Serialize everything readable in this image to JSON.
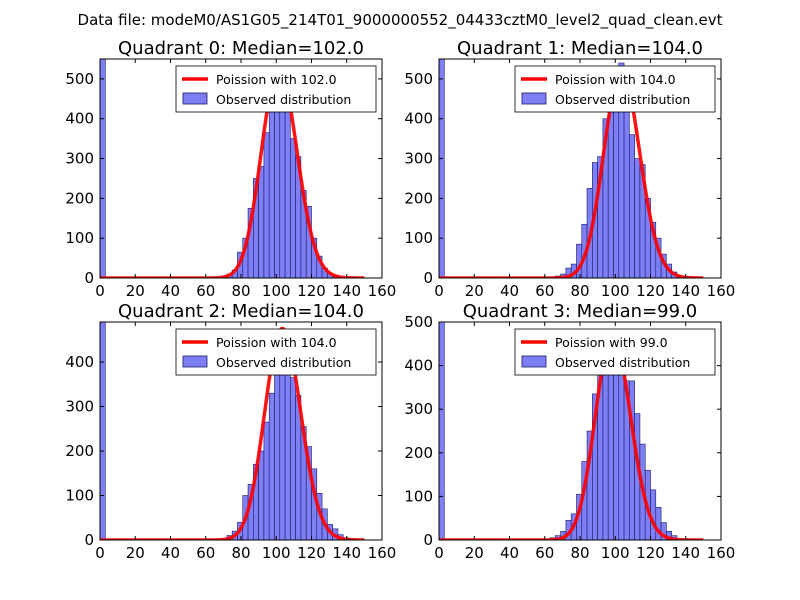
{
  "suptitle": "Data file: modeM0/AS1G05_214T01_9000000552_04433cztM0_level2_quad_clean.evt",
  "legend_labels": {
    "fit": "Poission with",
    "observed": "Observed distribution"
  },
  "colors": {
    "fit": "#ff0000",
    "bars": "#7f7ff5",
    "bar_edge": "#1a1a66"
  },
  "chart_data": [
    {
      "type": "bar",
      "title": "Quadrant 0: Median=102.0",
      "legend": [
        "Poission with 102.0",
        "Observed distribution"
      ],
      "legend_position": "top-right",
      "median": 102.0,
      "xlim": [
        0,
        160
      ],
      "ylim": [
        0,
        550
      ],
      "xticks": [
        0,
        20,
        40,
        60,
        80,
        100,
        120,
        140,
        160
      ],
      "yticks": [
        0,
        100,
        200,
        300,
        400,
        500
      ],
      "bin_width": 3,
      "bins": [
        [
          0,
          550
        ],
        [
          69,
          5
        ],
        [
          72,
          10
        ],
        [
          75,
          20
        ],
        [
          78,
          65
        ],
        [
          81,
          100
        ],
        [
          84,
          175
        ],
        [
          87,
          250
        ],
        [
          90,
          280
        ],
        [
          93,
          365
        ],
        [
          96,
          460
        ],
        [
          99,
          500
        ],
        [
          102,
          440
        ],
        [
          105,
          430
        ],
        [
          108,
          350
        ],
        [
          111,
          305
        ],
        [
          114,
          220
        ],
        [
          117,
          180
        ],
        [
          120,
          100
        ],
        [
          123,
          55
        ],
        [
          126,
          25
        ],
        [
          129,
          12
        ],
        [
          132,
          5
        ],
        [
          135,
          2
        ]
      ],
      "fit_peak": 525
    },
    {
      "type": "bar",
      "title": "Quadrant 1: Median=104.0",
      "legend": [
        "Poission with 104.0",
        "Observed distribution"
      ],
      "legend_position": "top-right",
      "median": 104.0,
      "xlim": [
        0,
        160
      ],
      "ylim": [
        0,
        550
      ],
      "xticks": [
        0,
        20,
        40,
        60,
        80,
        100,
        120,
        140,
        160
      ],
      "yticks": [
        0,
        100,
        200,
        300,
        400,
        500
      ],
      "bin_width": 3,
      "bins": [
        [
          0,
          550
        ],
        [
          66,
          5
        ],
        [
          69,
          10
        ],
        [
          72,
          25
        ],
        [
          75,
          35
        ],
        [
          78,
          85
        ],
        [
          81,
          135
        ],
        [
          84,
          225
        ],
        [
          87,
          290
        ],
        [
          90,
          305
        ],
        [
          93,
          400
        ],
        [
          96,
          430
        ],
        [
          99,
          460
        ],
        [
          102,
          540
        ],
        [
          105,
          470
        ],
        [
          108,
          360
        ],
        [
          111,
          300
        ],
        [
          114,
          285
        ],
        [
          117,
          200
        ],
        [
          120,
          140
        ],
        [
          123,
          100
        ],
        [
          126,
          60
        ],
        [
          129,
          35
        ],
        [
          132,
          15
        ],
        [
          135,
          5
        ]
      ],
      "fit_peak": 520
    },
    {
      "type": "bar",
      "title": "Quadrant 2: Median=104.0",
      "legend": [
        "Poission with 104.0",
        "Observed distribution"
      ],
      "legend_position": "top-right",
      "median": 104.0,
      "xlim": [
        0,
        160
      ],
      "ylim": [
        0,
        490
      ],
      "xticks": [
        0,
        20,
        40,
        60,
        80,
        100,
        120,
        140,
        160
      ],
      "yticks": [
        0,
        100,
        200,
        300,
        400
      ],
      "bin_width": 3,
      "bins": [
        [
          0,
          490
        ],
        [
          72,
          10
        ],
        [
          75,
          20
        ],
        [
          78,
          40
        ],
        [
          81,
          100
        ],
        [
          84,
          125
        ],
        [
          87,
          170
        ],
        [
          90,
          200
        ],
        [
          93,
          265
        ],
        [
          96,
          330
        ],
        [
          99,
          380
        ],
        [
          102,
          440
        ],
        [
          105,
          410
        ],
        [
          108,
          365
        ],
        [
          111,
          325
        ],
        [
          114,
          255
        ],
        [
          117,
          210
        ],
        [
          120,
          160
        ],
        [
          123,
          105
        ],
        [
          126,
          70
        ],
        [
          129,
          35
        ],
        [
          132,
          25
        ],
        [
          135,
          12
        ],
        [
          138,
          5
        ],
        [
          141,
          2
        ]
      ],
      "fit_peak": 475
    },
    {
      "type": "bar",
      "title": "Quadrant 3: Median=99.0",
      "legend": [
        "Poission with 99.0",
        "Observed distribution"
      ],
      "legend_position": "top-right",
      "median": 99.0,
      "xlim": [
        0,
        160
      ],
      "ylim": [
        0,
        500
      ],
      "xticks": [
        0,
        20,
        40,
        60,
        80,
        100,
        120,
        140,
        160
      ],
      "yticks": [
        0,
        100,
        200,
        300,
        400,
        500
      ],
      "bin_width": 3,
      "bins": [
        [
          0,
          500
        ],
        [
          63,
          5
        ],
        [
          66,
          10
        ],
        [
          69,
          20
        ],
        [
          72,
          45
        ],
        [
          75,
          60
        ],
        [
          78,
          105
        ],
        [
          81,
          180
        ],
        [
          84,
          250
        ],
        [
          87,
          335
        ],
        [
          90,
          390
        ],
        [
          93,
          450
        ],
        [
          96,
          430
        ],
        [
          99,
          470
        ],
        [
          102,
          430
        ],
        [
          105,
          365
        ],
        [
          108,
          365
        ],
        [
          111,
          290
        ],
        [
          114,
          220
        ],
        [
          117,
          160
        ],
        [
          120,
          115
        ],
        [
          123,
          75
        ],
        [
          126,
          40
        ],
        [
          129,
          20
        ],
        [
          132,
          10
        ]
      ],
      "fit_peak": 470
    }
  ]
}
